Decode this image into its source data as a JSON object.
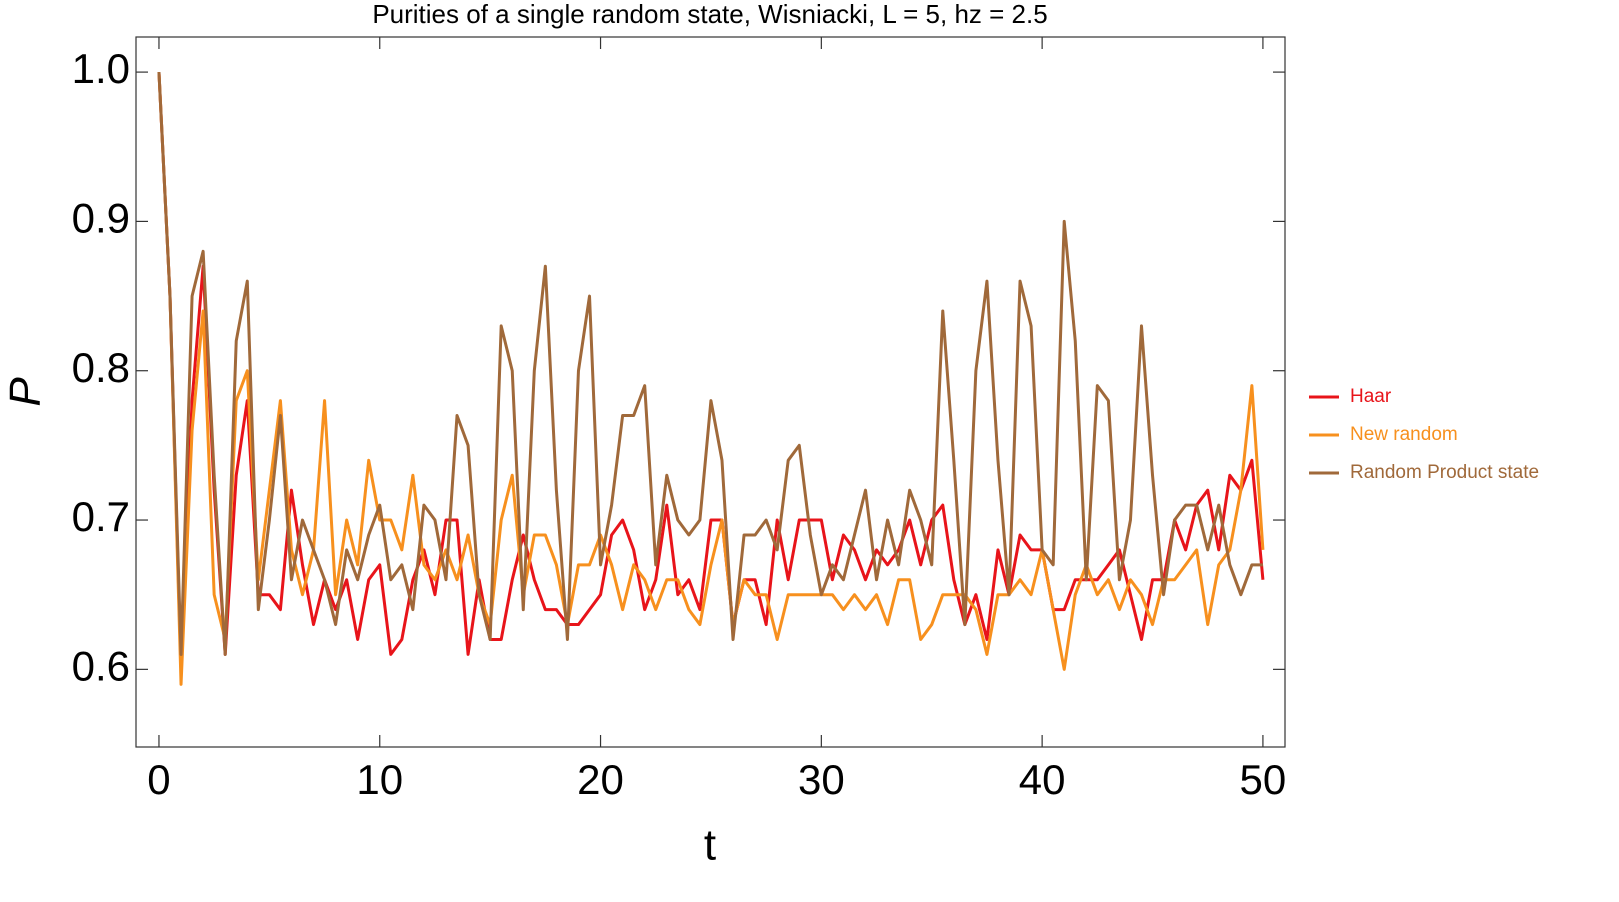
{
  "chart_data": {
    "type": "line",
    "title": "Purities of a single random state, Wisniacki, L = 5, hz = 2.5",
    "x_label": "t",
    "y_label": "P",
    "x": [
      0,
      0.5,
      1,
      1.5,
      2,
      2.5,
      3,
      3.5,
      4,
      4.5,
      5,
      5.5,
      6,
      6.5,
      7,
      7.5,
      8,
      8.5,
      9,
      9.5,
      10,
      10.5,
      11,
      11.5,
      12,
      12.5,
      13,
      13.5,
      14,
      14.5,
      15,
      15.5,
      16,
      16.5,
      17,
      17.5,
      18,
      18.5,
      19,
      19.5,
      20,
      20.5,
      21,
      21.5,
      22,
      22.5,
      23,
      23.5,
      24,
      24.5,
      25,
      25.5,
      26,
      26.5,
      27,
      27.5,
      28,
      28.5,
      29,
      29.5,
      30,
      30.5,
      31,
      31.5,
      32,
      32.5,
      33,
      33.5,
      34,
      34.5,
      35,
      35.5,
      36,
      36.5,
      37,
      37.5,
      38,
      38.5,
      39,
      39.5,
      40,
      40.5,
      41,
      41.5,
      42,
      42.5,
      43,
      43.5,
      44,
      44.5,
      45,
      45.5,
      46,
      46.5,
      47,
      47.5,
      48,
      48.5,
      49,
      49.5,
      50
    ],
    "series": [
      {
        "name": "Haar",
        "color": "#e8141a",
        "values": [
          1.0,
          0.85,
          0.6,
          0.78,
          0.87,
          0.72,
          0.61,
          0.73,
          0.78,
          0.65,
          0.65,
          0.64,
          0.72,
          0.67,
          0.63,
          0.66,
          0.64,
          0.66,
          0.62,
          0.66,
          0.67,
          0.61,
          0.62,
          0.66,
          0.68,
          0.65,
          0.7,
          0.7,
          0.61,
          0.66,
          0.62,
          0.62,
          0.66,
          0.69,
          0.66,
          0.64,
          0.64,
          0.63,
          0.63,
          0.64,
          0.65,
          0.69,
          0.7,
          0.68,
          0.64,
          0.66,
          0.71,
          0.65,
          0.66,
          0.64,
          0.7,
          0.7,
          0.63,
          0.66,
          0.66,
          0.63,
          0.7,
          0.66,
          0.7,
          0.7,
          0.7,
          0.66,
          0.69,
          0.68,
          0.66,
          0.68,
          0.67,
          0.68,
          0.7,
          0.67,
          0.7,
          0.71,
          0.66,
          0.63,
          0.65,
          0.62,
          0.68,
          0.65,
          0.69,
          0.68,
          0.68,
          0.64,
          0.64,
          0.66,
          0.66,
          0.66,
          0.67,
          0.68,
          0.65,
          0.62,
          0.66,
          0.66,
          0.7,
          0.68,
          0.71,
          0.72,
          0.68,
          0.73,
          0.72,
          0.74,
          0.66
        ]
      },
      {
        "name": "New random",
        "color": "#f7901e",
        "values": [
          1.0,
          0.85,
          0.59,
          0.76,
          0.84,
          0.65,
          0.62,
          0.78,
          0.8,
          0.66,
          0.72,
          0.78,
          0.68,
          0.65,
          0.68,
          0.78,
          0.65,
          0.7,
          0.67,
          0.74,
          0.7,
          0.7,
          0.68,
          0.73,
          0.67,
          0.66,
          0.68,
          0.66,
          0.69,
          0.65,
          0.63,
          0.7,
          0.73,
          0.65,
          0.69,
          0.69,
          0.67,
          0.63,
          0.67,
          0.67,
          0.69,
          0.67,
          0.64,
          0.67,
          0.66,
          0.64,
          0.66,
          0.66,
          0.64,
          0.63,
          0.67,
          0.7,
          0.63,
          0.66,
          0.65,
          0.65,
          0.62,
          0.65,
          0.65,
          0.65,
          0.65,
          0.65,
          0.64,
          0.65,
          0.64,
          0.65,
          0.63,
          0.66,
          0.66,
          0.62,
          0.63,
          0.65,
          0.65,
          0.65,
          0.64,
          0.61,
          0.65,
          0.65,
          0.66,
          0.65,
          0.68,
          0.64,
          0.6,
          0.65,
          0.67,
          0.65,
          0.66,
          0.64,
          0.66,
          0.65,
          0.63,
          0.66,
          0.66,
          0.67,
          0.68,
          0.63,
          0.67,
          0.68,
          0.72,
          0.79,
          0.68
        ]
      },
      {
        "name": "Random Product state",
        "color": "#a0693a",
        "values": [
          1.0,
          0.85,
          0.61,
          0.85,
          0.88,
          0.73,
          0.61,
          0.82,
          0.86,
          0.64,
          0.7,
          0.77,
          0.66,
          0.7,
          0.68,
          0.66,
          0.63,
          0.68,
          0.66,
          0.69,
          0.71,
          0.66,
          0.67,
          0.64,
          0.71,
          0.7,
          0.66,
          0.77,
          0.75,
          0.65,
          0.62,
          0.83,
          0.8,
          0.64,
          0.8,
          0.87,
          0.72,
          0.62,
          0.8,
          0.85,
          0.67,
          0.71,
          0.77,
          0.77,
          0.79,
          0.67,
          0.73,
          0.7,
          0.69,
          0.7,
          0.78,
          0.74,
          0.62,
          0.69,
          0.69,
          0.7,
          0.68,
          0.74,
          0.75,
          0.69,
          0.65,
          0.67,
          0.66,
          0.69,
          0.72,
          0.66,
          0.7,
          0.67,
          0.72,
          0.7,
          0.67,
          0.84,
          0.74,
          0.63,
          0.8,
          0.86,
          0.74,
          0.65,
          0.86,
          0.83,
          0.68,
          0.67,
          0.9,
          0.82,
          0.66,
          0.79,
          0.78,
          0.66,
          0.7,
          0.83,
          0.73,
          0.65,
          0.7,
          0.71,
          0.71,
          0.68,
          0.71,
          0.67,
          0.65,
          0.67,
          0.67
        ]
      }
    ],
    "xlim": [
      -1.04,
      51
    ],
    "ylim": [
      0.548,
      1.0235
    ],
    "xticks": [
      0,
      10,
      20,
      30,
      40,
      50
    ],
    "yticks": [
      0.6,
      0.7,
      0.8,
      0.9,
      {
        "value": 1.0,
        "label": "1.0"
      }
    ],
    "legend": "right"
  }
}
